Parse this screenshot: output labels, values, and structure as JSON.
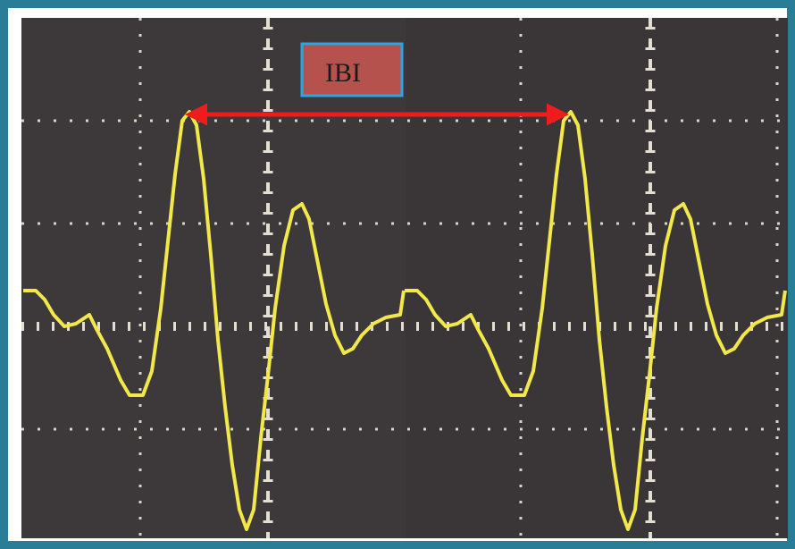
{
  "annotation": {
    "label": "IBI"
  }
}
